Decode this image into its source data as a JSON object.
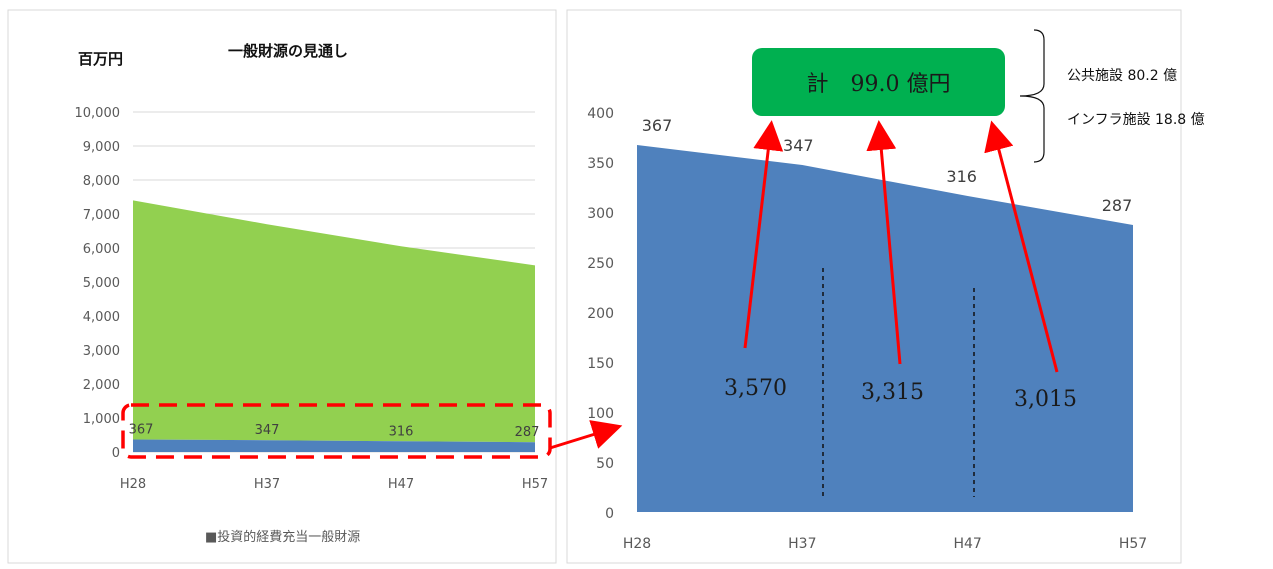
{
  "left_chart": {
    "title": "一般財源の見通し",
    "unit": "百万円",
    "legend": "■投資的経費充当一般財源",
    "y_ticks": [
      "10,000",
      "9,000",
      "8,000",
      "7,000",
      "6,000",
      "5,000",
      "4,000",
      "3,000",
      "2,000",
      "1,000",
      "0"
    ],
    "data_labels": [
      "367",
      "347",
      "316",
      "287"
    ]
  },
  "right_chart": {
    "y_ticks": [
      "400",
      "350",
      "300",
      "250",
      "200",
      "150",
      "100",
      "50",
      "0"
    ],
    "data_labels": [
      "367",
      "347",
      "316",
      "287"
    ],
    "period_totals": [
      "3,570",
      "3,315",
      "3,015"
    ]
  },
  "summary": {
    "total_label": "計　99.0 億円",
    "note_public": "公共施設 80.2 億",
    "note_infra": "インフラ施設 18.8 億"
  },
  "colors": {
    "green_area": "#92d050",
    "blue_area": "#4f81bd",
    "box_green": "#00b050",
    "arrow_red": "#ff0000"
  },
  "chart_data": [
    {
      "type": "area",
      "categories": [
        "H28",
        "H37",
        "H47",
        "H57"
      ],
      "series": [
        {
          "name": "投資的経費充当一般財源",
          "values": [
            367,
            347,
            316,
            287
          ]
        },
        {
          "values": [
            7400,
            6700,
            6050,
            5490
          ]
        }
      ],
      "title": "一般財源の見通し",
      "ylabel": "百万円",
      "ylim": [
        0,
        10000
      ],
      "grid": true,
      "legend": "bottom"
    },
    {
      "type": "area",
      "categories": [
        "H28",
        "H37",
        "H47",
        "H57"
      ],
      "series": [
        {
          "values": [
            367,
            347,
            316,
            287
          ]
        }
      ],
      "ylim": [
        0,
        400
      ],
      "grid": false,
      "period_totals": [
        3570,
        3315,
        3015
      ]
    }
  ]
}
